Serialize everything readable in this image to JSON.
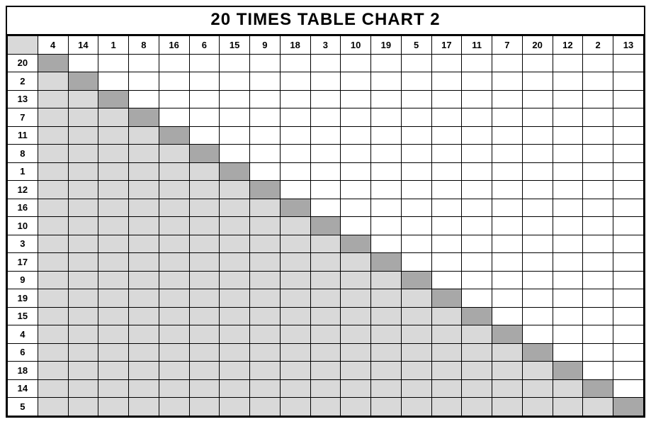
{
  "title": "20 TIMES TABLE CHART 2",
  "col_headers": [
    4,
    14,
    1,
    8,
    16,
    6,
    15,
    9,
    18,
    3,
    10,
    19,
    5,
    17,
    11,
    7,
    20,
    12,
    2,
    13
  ],
  "row_headers": [
    20,
    2,
    13,
    7,
    11,
    8,
    1,
    12,
    16,
    10,
    3,
    17,
    9,
    19,
    15,
    4,
    6,
    18,
    14,
    5
  ],
  "colors": {
    "diagonal": "#a8a8a8",
    "below": "#d9d9d9",
    "above": "#ffffff",
    "corner": "#d9d9d9",
    "border": "#000000"
  },
  "fontsize": {
    "title": 24,
    "header": 13
  }
}
